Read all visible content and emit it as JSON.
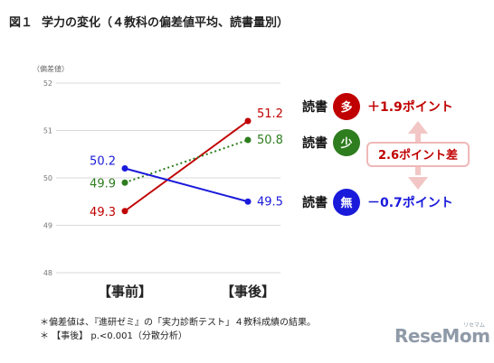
{
  "title": {
    "number": "図１",
    "text": "学力の変化（４教科の偏差値平均、読書量別）"
  },
  "chart_data": {
    "type": "line",
    "ylabel": "（偏差値）",
    "ylim": [
      48,
      52
    ],
    "yticks": [
      "48",
      "49",
      "50",
      "51",
      "52"
    ],
    "categories": [
      "【事前】",
      "【事後】"
    ],
    "series": [
      {
        "key": "many",
        "values": [
          49.3,
          51.2
        ],
        "value_labels": [
          "49.3",
          "51.2"
        ],
        "color": "#c00000",
        "line": "solid",
        "legend_text": "読書",
        "badge": "多",
        "change": "＋1.9ポイント"
      },
      {
        "key": "few",
        "values": [
          49.9,
          50.8
        ],
        "value_labels": [
          "49.9",
          "50.8"
        ],
        "color": "#2e7d1e",
        "line": "dotted",
        "legend_text": "読書",
        "badge": "少",
        "change": ""
      },
      {
        "key": "none",
        "values": [
          50.2,
          49.5
        ],
        "value_labels": [
          "50.2",
          "49.5"
        ],
        "color": "#1a1adb",
        "line": "solid",
        "legend_text": "読書",
        "badge": "無",
        "change": "－0.7ポイント"
      }
    ],
    "difference_label": "2.6ポイント差"
  },
  "notes": [
    "＊偏差値は、『進研ゼミ』の「実力診断テスト」４教科成績の結果。",
    "＊ 【事後】 p.<0.001（分散分析）"
  ],
  "logo": {
    "text": "ReseMom",
    "sub": "リセマム"
  }
}
